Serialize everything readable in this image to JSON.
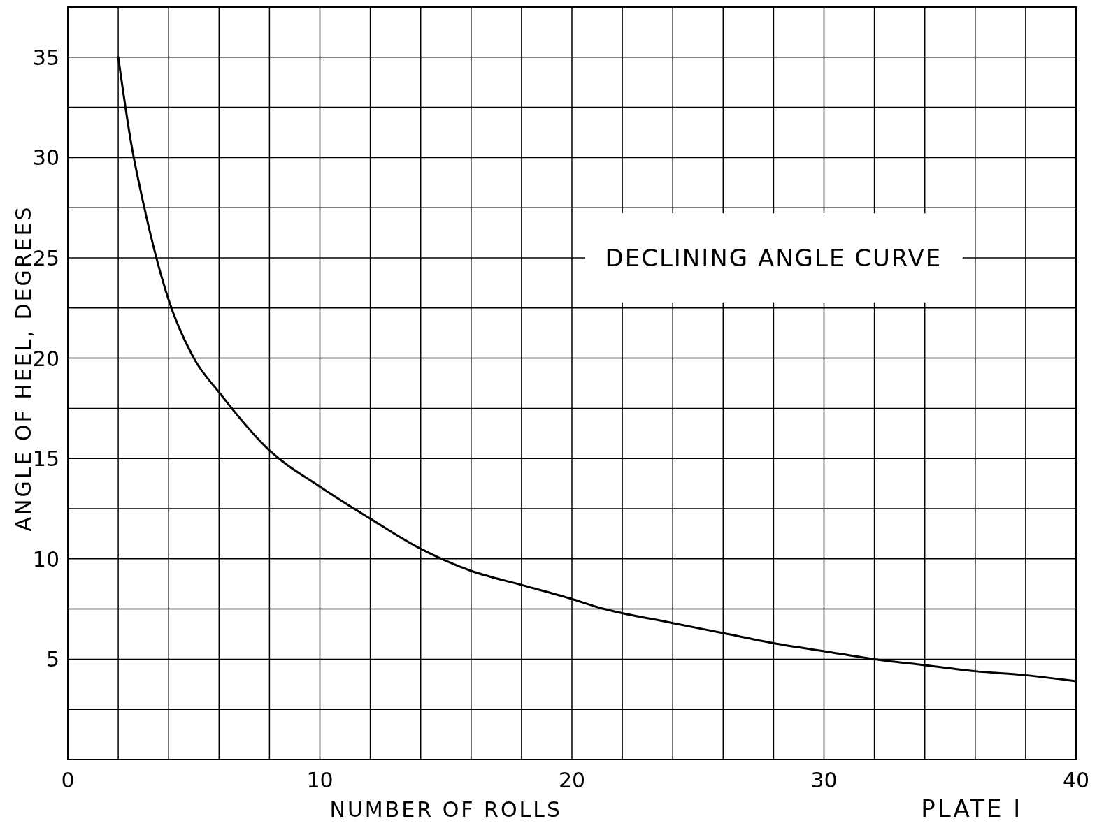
{
  "chart_data": {
    "type": "line",
    "title": "DECLINING ANGLE CURVE",
    "xlabel": "NUMBER OF ROLLS",
    "ylabel": "ANGLE OF HEEL, DEGREES",
    "annotations": [
      "PLATE I"
    ],
    "x": [
      2,
      2.5,
      3,
      4,
      5,
      6,
      8,
      10,
      12,
      14,
      15,
      16,
      18,
      20,
      21,
      24,
      26,
      28,
      30,
      32,
      34,
      36,
      38,
      40
    ],
    "series": [
      {
        "color": "#000000",
        "values": [
          35,
          30.8,
          27.7,
          22.9,
          20.0,
          18.3,
          15.4,
          13.6,
          12.0,
          10.5,
          9.9,
          9.4,
          8.7,
          8.0,
          7.6,
          6.8,
          6.3,
          5.8,
          5.4,
          5.0,
          4.7,
          4.4,
          4.2,
          3.9
        ]
      }
    ],
    "xlim": [
      0,
      40
    ],
    "ylim": [
      0,
      37.5
    ],
    "xticks": [
      0,
      {
        "value": 2,
        "label": null
      },
      {
        "value": 4,
        "label": null
      },
      {
        "value": 6,
        "label": null
      },
      {
        "value": 8,
        "label": null
      },
      10,
      {
        "value": 12,
        "label": null
      },
      {
        "value": 14,
        "label": null
      },
      {
        "value": 16,
        "label": null
      },
      {
        "value": 18,
        "label": null
      },
      20,
      {
        "value": 22,
        "label": null
      },
      {
        "value": 24,
        "label": null
      },
      {
        "value": 26,
        "label": null
      },
      {
        "value": 28,
        "label": null
      },
      30,
      {
        "value": 32,
        "label": null
      },
      {
        "value": 34,
        "label": null
      },
      {
        "value": 36,
        "label": null
      },
      {
        "value": 38,
        "label": null
      },
      40
    ],
    "yticks": [
      {
        "value": 2.5,
        "label": null
      },
      5,
      {
        "value": 7.5,
        "label": null
      },
      10,
      {
        "value": 12.5,
        "label": null
      },
      15,
      {
        "value": 17.5,
        "label": null
      },
      20,
      {
        "value": 22.5,
        "label": null
      },
      25,
      {
        "value": 27.5,
        "label": null
      },
      30,
      {
        "value": 32.5,
        "label": null
      },
      35
    ],
    "grid": true,
    "line_style": "solid"
  }
}
